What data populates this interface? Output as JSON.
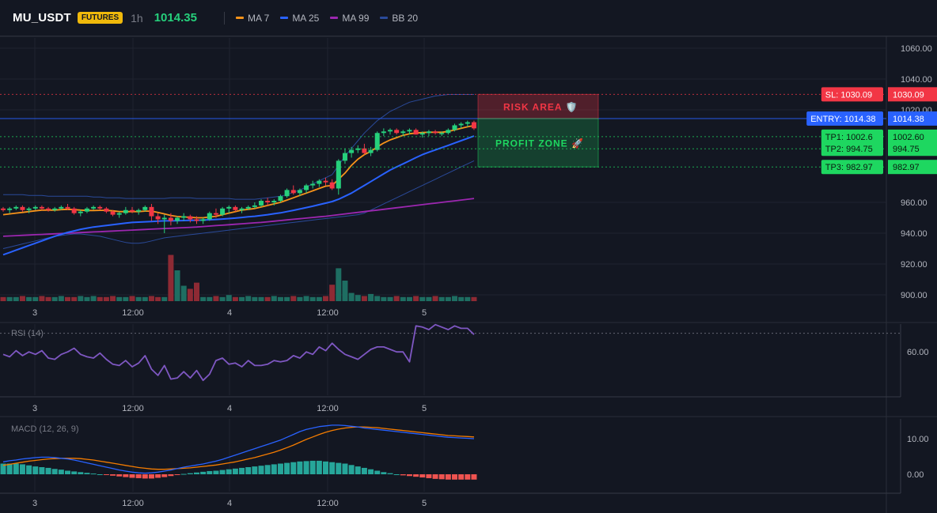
{
  "header": {
    "symbol": "MU_USDT",
    "badge": "FUTURES",
    "timeframe": "1h",
    "price": "1014.35",
    "indicators": [
      {
        "label": "MA 7",
        "color": "#f7931a"
      },
      {
        "label": "MA 25",
        "color": "#2962ff"
      },
      {
        "label": "MA 99",
        "color": "#9c27b0"
      },
      {
        "label": "BB 20",
        "color": "#2a4a9a"
      }
    ]
  },
  "colors": {
    "bg": "#131722",
    "grid": "#1f2330",
    "up": "#26d07c",
    "down": "#f23645",
    "up_vol": "#1e6e62",
    "down_vol": "#8e2a34",
    "ma7": "#f7931a",
    "ma25": "#2962ff",
    "ma99": "#9c27b0",
    "bb": "#2a4a9a",
    "rsi": "#7e57c2",
    "macd": "#2962ff",
    "signal": "#f57c00",
    "hist_up": "#26a69a",
    "hist_down": "#ef5350"
  },
  "chart_data": [
    {
      "type": "candlestick",
      "panel": "price",
      "y_axis_ticks": [
        "1060.00",
        "1040.00",
        "1020.00",
        "960.00",
        "940.00",
        "920.00",
        "900.00"
      ],
      "x_axis_ticks": [
        "3",
        "12:00",
        "4",
        "12:00",
        "5"
      ],
      "ylim": [
        900,
        1060
      ],
      "ohlc": [
        [
          956,
          957,
          954,
          955
        ],
        [
          955,
          957,
          953,
          956
        ],
        [
          956,
          958,
          955,
          957
        ],
        [
          957,
          958,
          954,
          955
        ],
        [
          955,
          957,
          953,
          956
        ],
        [
          956,
          958,
          955,
          957
        ],
        [
          957,
          958,
          955,
          956
        ],
        [
          956,
          957,
          954,
          955
        ],
        [
          955,
          957,
          954,
          956
        ],
        [
          956,
          958,
          955,
          957
        ],
        [
          957,
          959,
          955,
          956
        ],
        [
          956,
          957,
          952,
          953
        ],
        [
          953,
          955,
          951,
          954
        ],
        [
          954,
          957,
          953,
          956
        ],
        [
          956,
          958,
          955,
          957
        ],
        [
          957,
          958,
          955,
          956
        ],
        [
          956,
          957,
          953,
          954
        ],
        [
          954,
          955,
          951,
          952
        ],
        [
          952,
          954,
          950,
          953
        ],
        [
          953,
          957,
          952,
          955
        ],
        [
          955,
          957,
          953,
          954
        ],
        [
          954,
          956,
          952,
          955
        ],
        [
          955,
          958,
          954,
          957
        ],
        [
          957,
          959,
          948,
          951
        ],
        [
          951,
          953,
          946,
          949
        ],
        [
          949,
          952,
          940,
          950
        ],
        [
          950,
          953,
          945,
          948
        ],
        [
          948,
          951,
          946,
          950
        ],
        [
          950,
          953,
          948,
          951
        ],
        [
          951,
          952,
          947,
          949
        ],
        [
          949,
          951,
          946,
          948
        ],
        [
          948,
          950,
          946,
          949
        ],
        [
          949,
          954,
          948,
          953
        ],
        [
          953,
          956,
          950,
          952
        ],
        [
          952,
          957,
          951,
          956
        ],
        [
          956,
          958,
          953,
          957
        ],
        [
          957,
          958,
          954,
          955
        ],
        [
          955,
          957,
          953,
          956
        ],
        [
          956,
          958,
          955,
          957
        ],
        [
          957,
          960,
          956,
          958
        ],
        [
          958,
          962,
          957,
          961
        ],
        [
          961,
          963,
          958,
          960
        ],
        [
          960,
          962,
          958,
          961
        ],
        [
          961,
          965,
          960,
          964
        ],
        [
          964,
          969,
          963,
          968
        ],
        [
          968,
          971,
          965,
          966
        ],
        [
          966,
          969,
          964,
          968
        ],
        [
          968,
          972,
          966,
          971
        ],
        [
          971,
          974,
          969,
          972
        ],
        [
          972,
          975,
          970,
          974
        ],
        [
          974,
          976,
          971,
          973
        ],
        [
          973,
          975,
          968,
          969
        ],
        [
          969,
          988,
          965,
          987
        ],
        [
          987,
          995,
          985,
          992
        ],
        [
          992,
          996,
          989,
          994
        ],
        [
          994,
          997,
          992,
          995
        ],
        [
          995,
          998,
          991,
          992
        ],
        [
          992,
          996,
          990,
          994
        ],
        [
          994,
          1006,
          993,
          1005
        ],
        [
          1005,
          1008,
          1003,
          1006
        ],
        [
          1006,
          1008,
          1004,
          1007
        ],
        [
          1007,
          1008,
          1004,
          1005
        ],
        [
          1005,
          1007,
          1003,
          1006
        ],
        [
          1006,
          1008,
          1004,
          1007
        ],
        [
          1007,
          1008,
          1004,
          1004
        ],
        [
          1004,
          1006,
          1002,
          1005
        ],
        [
          1005,
          1007,
          1003,
          1006
        ],
        [
          1006,
          1007,
          1004,
          1005
        ],
        [
          1005,
          1006,
          1003,
          1005
        ],
        [
          1005,
          1008,
          1004,
          1007
        ],
        [
          1007,
          1011,
          1006,
          1010
        ],
        [
          1010,
          1012,
          1008,
          1011
        ],
        [
          1011,
          1013,
          1009,
          1012
        ],
        [
          1012,
          1013,
          1007,
          1008
        ]
      ],
      "volume": [
        4,
        4,
        4,
        5,
        4,
        4,
        5,
        4,
        4,
        5,
        4,
        4,
        5,
        4,
        5,
        4,
        4,
        5,
        4,
        4,
        5,
        4,
        4,
        5,
        4,
        4,
        45,
        30,
        15,
        12,
        18,
        4,
        4,
        5,
        4,
        6,
        4,
        4,
        5,
        4,
        4,
        4,
        5,
        4,
        4,
        5,
        4,
        5,
        4,
        4,
        5,
        16,
        32,
        20,
        8,
        6,
        5,
        7,
        5,
        4,
        4,
        5,
        4,
        4,
        5,
        4,
        4,
        5,
        4,
        4,
        5,
        4,
        4,
        4
      ],
      "ma7": [
        952,
        952.5,
        953,
        953.5,
        954,
        954.5,
        955,
        955,
        955,
        955.3,
        955.5,
        955.3,
        955,
        954.7,
        954.7,
        954.8,
        954.8,
        954.5,
        954,
        954,
        954,
        954,
        954.3,
        954.3,
        953.5,
        952.5,
        951.5,
        950.8,
        950.5,
        950.3,
        950,
        950,
        950.5,
        951,
        952,
        953,
        954,
        955,
        955.5,
        956,
        957,
        958,
        959,
        960,
        961.5,
        963,
        964.5,
        966,
        967.5,
        969,
        970.5,
        971,
        975,
        979,
        984,
        988,
        991,
        993,
        996,
        998.5,
        1000.5,
        1002,
        1003.5,
        1004.5,
        1005,
        1005.3,
        1005.5,
        1005.5,
        1005.5,
        1006,
        1007,
        1008,
        1009,
        1009.8
      ],
      "ma25": [
        926,
        927.5,
        929,
        930.5,
        932,
        933.5,
        935,
        936.5,
        938,
        939.3,
        940.5,
        941.5,
        942.5,
        943.3,
        944,
        944.5,
        945,
        945.5,
        946,
        946.5,
        947,
        947.2,
        947.4,
        947.6,
        947.8,
        948,
        948,
        948.1,
        948.2,
        948.3,
        948.4,
        948.5,
        948.7,
        948.9,
        949.2,
        949.5,
        949.8,
        950.2,
        950.6,
        951,
        951.5,
        952,
        952.6,
        953.2,
        954,
        954.8,
        955.7,
        956.6,
        957.5,
        958.5,
        959.5,
        960.5,
        962,
        964,
        966,
        968.5,
        971,
        973.5,
        976,
        978.5,
        981,
        983,
        985,
        987,
        989,
        991,
        992.5,
        994,
        995.5,
        997,
        998.5,
        1000,
        1001.5,
        1003
      ],
      "ma99": [
        938,
        938.2,
        938.4,
        938.6,
        938.8,
        939,
        939.2,
        939.4,
        939.6,
        939.8,
        940,
        940.2,
        940.4,
        940.6,
        940.8,
        941,
        941.2,
        941.4,
        941.6,
        941.8,
        942,
        942.2,
        942.4,
        942.6,
        942.8,
        943,
        943.2,
        943.4,
        943.6,
        943.8,
        944,
        944.3,
        944.6,
        944.9,
        945.2,
        945.5,
        945.8,
        946.1,
        946.4,
        946.7,
        947,
        947.4,
        947.8,
        948.2,
        948.6,
        949,
        949.4,
        949.8,
        950.2,
        950.6,
        951,
        951.5,
        952,
        952.5,
        953,
        953.5,
        954,
        954.5,
        955,
        955.5,
        956,
        956.5,
        957,
        957.5,
        958,
        958.5,
        959,
        959.5,
        960,
        960.5,
        961,
        961.5,
        962,
        962.5
      ],
      "bb_upper": [
        965,
        965,
        965,
        965,
        964.5,
        964.5,
        964.5,
        964,
        964,
        964,
        964,
        964,
        964,
        964,
        963.5,
        963.5,
        963,
        963,
        963,
        962.5,
        962.5,
        962.5,
        962.5,
        962.5,
        962.5,
        962.5,
        963,
        963,
        963,
        963,
        962.5,
        962.5,
        962.5,
        962.5,
        962.5,
        962.5,
        962,
        962,
        962,
        962,
        962.5,
        963,
        963.5,
        964,
        965,
        966.5,
        968,
        970,
        972,
        974,
        976,
        978,
        984,
        990,
        995,
        1000,
        1005,
        1009,
        1013,
        1016,
        1019,
        1021,
        1023,
        1025,
        1026,
        1027,
        1028,
        1029,
        1029.5,
        1030,
        1030,
        1030,
        1030,
        1030
      ],
      "bb_lower": [
        930,
        931,
        932,
        933,
        934,
        935,
        936,
        937,
        938,
        938.5,
        939,
        939.5,
        939.5,
        939,
        938.5,
        938,
        937,
        936,
        935,
        934,
        933.5,
        933.5,
        934,
        935,
        936,
        937,
        937.5,
        938,
        938.5,
        939,
        939.5,
        940,
        940.5,
        941,
        941.5,
        942,
        942.5,
        943,
        943.5,
        944,
        944.5,
        945,
        945.5,
        946,
        946.5,
        947,
        947.5,
        948,
        948.5,
        949,
        949.5,
        950,
        950.5,
        951,
        951.5,
        952,
        953,
        955,
        957,
        959,
        961,
        963,
        965,
        967,
        969,
        971,
        973,
        975,
        977,
        979,
        981,
        983,
        985,
        987
      ]
    },
    {
      "type": "line",
      "panel": "rsi",
      "title": "RSI (14)",
      "y_axis_ticks": [
        "60.00"
      ],
      "x_axis_ticks": [
        "3",
        "12:00",
        "4",
        "12:00",
        "5"
      ],
      "ylim": [
        25,
        85
      ],
      "reference_line": 75,
      "values": [
        58,
        56,
        61,
        57,
        60,
        58,
        61,
        55,
        54,
        58,
        60,
        63,
        58,
        56,
        55,
        59,
        54,
        50,
        49,
        53,
        48,
        51,
        57,
        46,
        41,
        49,
        38,
        39,
        44,
        39,
        45,
        37,
        42,
        53,
        55,
        50,
        51,
        48,
        53,
        49,
        49,
        50,
        53,
        52,
        53,
        57,
        55,
        60,
        58,
        64,
        61,
        67,
        62,
        58,
        56,
        54,
        58,
        62,
        64,
        64,
        62,
        60,
        60,
        52,
        81,
        80,
        78,
        82,
        80,
        78,
        81,
        79,
        79,
        74
      ]
    },
    {
      "type": "line",
      "panel": "macd",
      "title": "MACD (12, 26, 9)",
      "y_axis_ticks": [
        "10.00",
        "0.00"
      ],
      "x_axis_ticks": [
        "3",
        "12:00",
        "4",
        "12:00",
        "5"
      ],
      "ylim": [
        -4,
        16
      ],
      "macd": [
        3.5,
        3.8,
        4,
        4.3,
        4.5,
        4.7,
        4.8,
        4.8,
        4.7,
        4.5,
        4.3,
        4,
        3.6,
        3.2,
        2.8,
        2.4,
        2,
        1.6,
        1.2,
        0.9,
        0.6,
        0.4,
        0.3,
        0.4,
        0.6,
        0.9,
        1.2,
        1.6,
        2,
        2.3,
        2.6,
        2.9,
        3.3,
        3.7,
        4.2,
        4.8,
        5.4,
        6,
        6.6,
        7.2,
        7.8,
        8.4,
        9,
        9.6,
        10.4,
        11.2,
        12,
        12.6,
        13,
        13.4,
        13.6,
        13.8,
        13.8,
        13.7,
        13.5,
        13.3,
        13,
        12.8,
        12.6,
        12.4,
        12.2,
        12,
        11.8,
        11.6,
        11.4,
        11.2,
        11,
        10.8,
        10.6,
        10.4,
        10.3,
        10.2,
        10.1,
        10
      ],
      "signal": [
        2.5,
        2.8,
        3.1,
        3.4,
        3.7,
        3.9,
        4.1,
        4.3,
        4.4,
        4.5,
        4.5,
        4.5,
        4.4,
        4.2,
        4,
        3.7,
        3.4,
        3.1,
        2.8,
        2.5,
        2.2,
        1.9,
        1.7,
        1.5,
        1.4,
        1.4,
        1.5,
        1.6,
        1.7,
        1.8,
        2,
        2.2,
        2.4,
        2.6,
        2.9,
        3.2,
        3.5,
        3.9,
        4.3,
        4.7,
        5.2,
        5.7,
        6.2,
        6.8,
        7.5,
        8.2,
        9,
        9.8,
        10.5,
        11.2,
        11.8,
        12.3,
        12.7,
        13,
        13.2,
        13.3,
        13.3,
        13.2,
        13.1,
        12.9,
        12.7,
        12.5,
        12.3,
        12.1,
        11.9,
        11.7,
        11.5,
        11.3,
        11.1,
        10.9,
        10.8,
        10.7,
        10.6,
        10.5
      ],
      "histogram": [
        3,
        3,
        3,
        2.8,
        2.5,
        2.2,
        2,
        1.8,
        1.5,
        1.3,
        1,
        0.8,
        0.6,
        0.4,
        0.2,
        0,
        -0.2,
        -0.4,
        -0.6,
        -0.8,
        -1,
        -1.1,
        -1.2,
        -1.2,
        -1,
        -0.8,
        -0.5,
        -0.2,
        0.1,
        0.3,
        0.5,
        0.7,
        0.9,
        1,
        1.2,
        1.4,
        1.6,
        1.8,
        2,
        2.2,
        2.4,
        2.6,
        2.8,
        3,
        3.2,
        3.4,
        3.6,
        3.7,
        3.8,
        3.8,
        3.6,
        3.4,
        3.2,
        3,
        2.6,
        2.2,
        1.8,
        1.4,
        1,
        0.6,
        0.3,
        0,
        -0.3,
        -0.5,
        -0.7,
        -0.9,
        -1.1,
        -1.3,
        -1.4,
        -1.5,
        -1.5,
        -1.5,
        -1.5,
        -1.5
      ]
    }
  ],
  "levels": {
    "sl": {
      "value": 1030.09,
      "tag": "SL: 1030.09",
      "axis": "1030.09",
      "color": "#f23645"
    },
    "entry": {
      "value": 1014.38,
      "tag": "ENTRY: 1014.38",
      "axis": "1014.38",
      "color": "#2962ff"
    },
    "tp1": {
      "value": 1002.6,
      "tag": "TP1: 1002.6",
      "axis": "1002.60",
      "color": "#1ed760"
    },
    "tp2": {
      "value": 994.75,
      "tag": "TP2: 994.75",
      "axis": "994.75",
      "color": "#1ed760"
    },
    "tp3": {
      "value": 982.97,
      "tag": "TP3: 982.97",
      "axis": "982.97",
      "color": "#1ed760"
    }
  },
  "zones": {
    "risk_label": "RISK AREA 🛡️",
    "profit_label": "PROFIT ZONE 🚀"
  }
}
